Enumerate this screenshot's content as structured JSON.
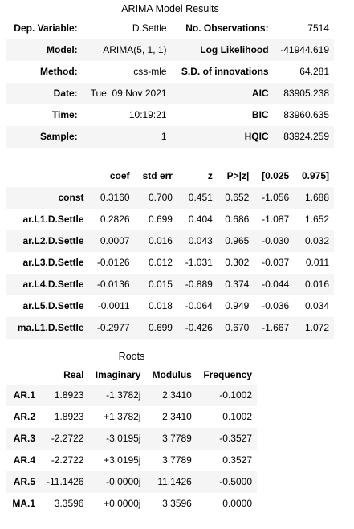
{
  "summary": {
    "title": "ARIMA Model Results",
    "rows": [
      {
        "l1": "Dep. Variable:",
        "v1": "D.Settle",
        "l2": "No. Observations:",
        "v2": "7514"
      },
      {
        "l1": "Model:",
        "v1": "ARIMA(5, 1, 1)",
        "l2": "Log Likelihood",
        "v2": "-41944.619"
      },
      {
        "l1": "Method:",
        "v1": "css-mle",
        "l2": "S.D. of innovations",
        "v2": "64.281"
      },
      {
        "l1": "Date:",
        "v1": "Tue, 09 Nov 2021",
        "l2": "AIC",
        "v2": "83905.238"
      },
      {
        "l1": "Time:",
        "v1": "10:19:21",
        "l2": "BIC",
        "v2": "83960.635"
      },
      {
        "l1": "Sample:",
        "v1": "1",
        "l2": "HQIC",
        "v2": "83924.259"
      }
    ]
  },
  "coef": {
    "headers": [
      "",
      "coef",
      "std err",
      "z",
      "P>|z|",
      "[0.025",
      "0.975]"
    ],
    "rows": [
      {
        "name": "const",
        "cells": [
          "0.3160",
          "0.700",
          "0.451",
          "0.652",
          "-1.056",
          "1.688"
        ]
      },
      {
        "name": "ar.L1.D.Settle",
        "cells": [
          "0.2826",
          "0.699",
          "0.404",
          "0.686",
          "-1.087",
          "1.652"
        ]
      },
      {
        "name": "ar.L2.D.Settle",
        "cells": [
          "0.0007",
          "0.016",
          "0.043",
          "0.965",
          "-0.030",
          "0.032"
        ]
      },
      {
        "name": "ar.L3.D.Settle",
        "cells": [
          "-0.0126",
          "0.012",
          "-1.031",
          "0.302",
          "-0.037",
          "0.011"
        ]
      },
      {
        "name": "ar.L4.D.Settle",
        "cells": [
          "-0.0136",
          "0.015",
          "-0.889",
          "0.374",
          "-0.044",
          "0.016"
        ]
      },
      {
        "name": "ar.L5.D.Settle",
        "cells": [
          "-0.0011",
          "0.018",
          "-0.064",
          "0.949",
          "-0.036",
          "0.034"
        ]
      },
      {
        "name": "ma.L1.D.Settle",
        "cells": [
          "-0.2977",
          "0.699",
          "-0.426",
          "0.670",
          "-1.667",
          "1.072"
        ]
      }
    ]
  },
  "roots": {
    "title": "Roots",
    "headers": [
      "",
      "Real",
      "Imaginary",
      "Modulus",
      "Frequency"
    ],
    "rows": [
      {
        "name": "AR.1",
        "cells": [
          "1.8923",
          "-1.3782j",
          "2.3410",
          "-0.1002"
        ]
      },
      {
        "name": "AR.2",
        "cells": [
          "1.8923",
          "+1.3782j",
          "2.3410",
          "0.1002"
        ]
      },
      {
        "name": "AR.3",
        "cells": [
          "-2.2722",
          "-3.0195j",
          "3.7789",
          "-0.3527"
        ]
      },
      {
        "name": "AR.4",
        "cells": [
          "-2.2722",
          "+3.0195j",
          "3.7789",
          "0.3527"
        ]
      },
      {
        "name": "AR.5",
        "cells": [
          "-11.1426",
          "-0.0000j",
          "11.1426",
          "-0.5000"
        ]
      },
      {
        "name": "MA.1",
        "cells": [
          "3.3596",
          "+0.0000j",
          "3.3596",
          "0.0000"
        ]
      }
    ]
  }
}
